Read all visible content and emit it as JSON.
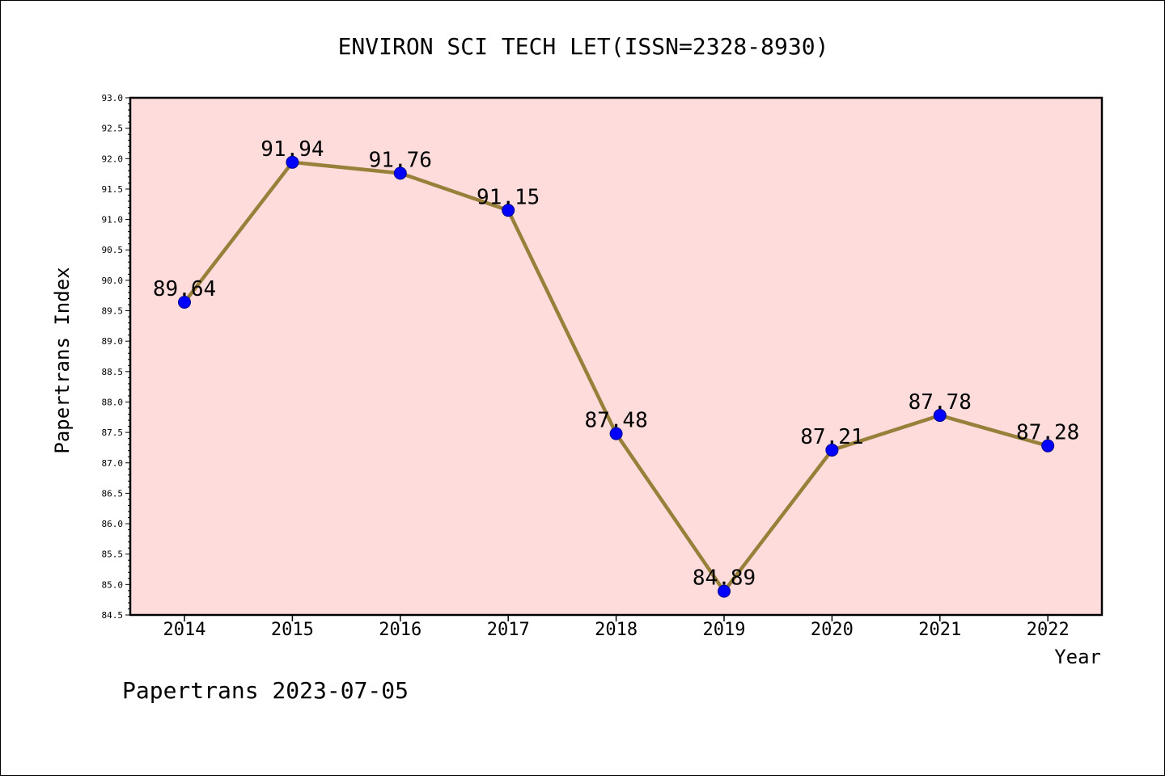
{
  "chart_data": {
    "type": "line",
    "title": "ENVIRON SCI TECH LET(ISSN=2328-8930)",
    "xlabel": "Year",
    "ylabel": "Papertrans Index",
    "categories": [
      "2014",
      "2015",
      "2016",
      "2017",
      "2018",
      "2019",
      "2020",
      "2021",
      "2022"
    ],
    "series": [
      {
        "values": [
          89.64,
          91.94,
          91.76,
          91.15,
          87.48,
          84.89,
          87.21,
          87.78,
          87.28
        ]
      }
    ],
    "data_labels": [
      "89.64",
      "91.94",
      "91.76",
      "91.15",
      "87.48",
      "84.89",
      "87.21",
      "87.78",
      "87.28"
    ],
    "ylim": [
      84.5,
      93.0
    ],
    "y_ticks": [
      "84.5",
      "85.0",
      "85.5",
      "86.0",
      "86.5",
      "87.0",
      "87.5",
      "88.0",
      "88.5",
      "89.0",
      "89.5",
      "90.0",
      "90.5",
      "91.0",
      "91.5",
      "92.0",
      "92.5",
      "93.0"
    ],
    "grid": false,
    "legend": "none",
    "colors": {
      "plot_background": "#ffdcdc",
      "line": "#98803a",
      "marker": "#0000ff"
    }
  },
  "footer": "Papertrans 2023-07-05"
}
